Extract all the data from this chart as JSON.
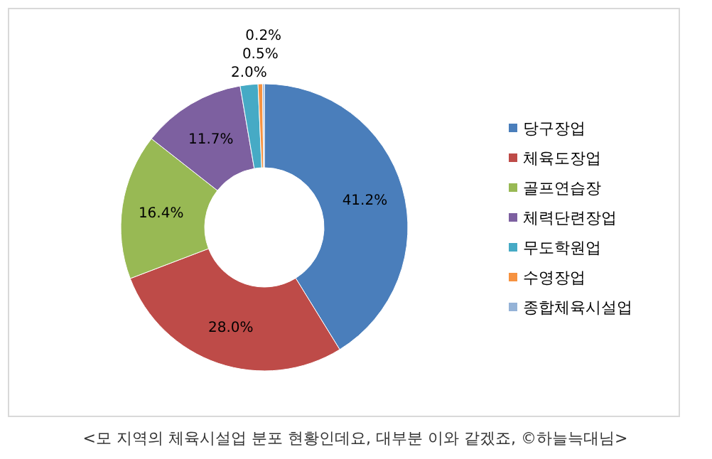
{
  "chart_data": {
    "type": "donut",
    "categories": [
      "당구장업",
      "체육도장업",
      "골프연습장",
      "체력단련장업",
      "무도학원업",
      "수영장업",
      "종합체육시설업"
    ],
    "values": [
      41.2,
      28.0,
      16.4,
      11.7,
      2.0,
      0.5,
      0.2
    ],
    "colors": [
      "#4a7ebb",
      "#be4b48",
      "#98b954",
      "#7d60a0",
      "#46aac5",
      "#f69240",
      "#95b3d7"
    ],
    "value_labels": [
      "41.2%",
      "28.0%",
      "16.4%",
      "11.7%",
      "2.0%",
      "0.5%",
      "0.2%"
    ],
    "legend": "right",
    "annotations": [
      "<모 지역의 체육시설업 분포 현황인데요, 대부분 이와 같겠죠, ©하늘늑대님>"
    ]
  }
}
